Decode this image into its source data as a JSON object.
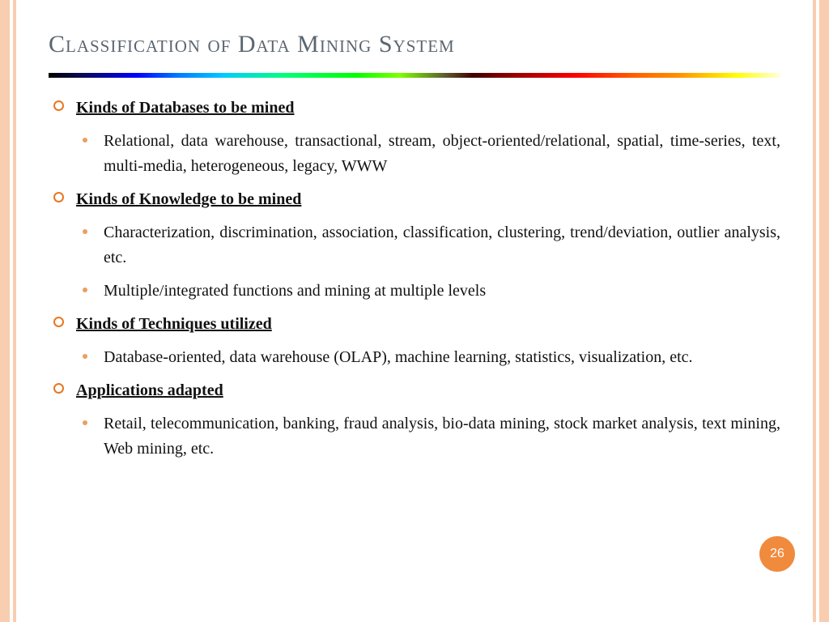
{
  "title": "Classification of Data Mining System",
  "title_color": "#5b6670",
  "title_fontsize": 30,
  "bullet_ring_color": "#e87722",
  "sub_bullet_color": "#e8a060",
  "border_color": "#f8cdb0",
  "badge_color": "#f08a3c",
  "page_number": "26",
  "spectrum_gradient": "linear-gradient(to right, #000000 0%, #0a0a4a 4%, #0000ff 12%, #0080ff 18%, #00ccff 24%, #00ff80 32%, #00ff00 42%, #80ff00 48%, #606030 54%, #400000 58%, #800000 62%, #ff0000 72%, #ff6000 80%, #ff9000 86%, #ffff00 94%, #ffffe0 100%)",
  "sections": [
    {
      "heading": "Kinds of Databases to be mined",
      "items": [
        "Relational, data warehouse, transactional, stream, object-oriented/relational, spatial, time-series, text, multi-media, heterogeneous, legacy, WWW"
      ]
    },
    {
      "heading": "Kinds of Knowledge to be mined",
      "items": [
        "Characterization, discrimination, association, classification, clustering, trend/deviation, outlier analysis, etc.",
        "Multiple/integrated functions and mining at multiple levels"
      ]
    },
    {
      "heading": "Kinds of Techniques utilized",
      "items": [
        "Database-oriented, data warehouse (OLAP), machine learning, statistics, visualization, etc."
      ]
    },
    {
      "heading": "Applications adapted",
      "items": [
        "Retail, telecommunication, banking, fraud analysis, bio-data mining, stock market analysis, text mining, Web mining, etc."
      ]
    }
  ]
}
